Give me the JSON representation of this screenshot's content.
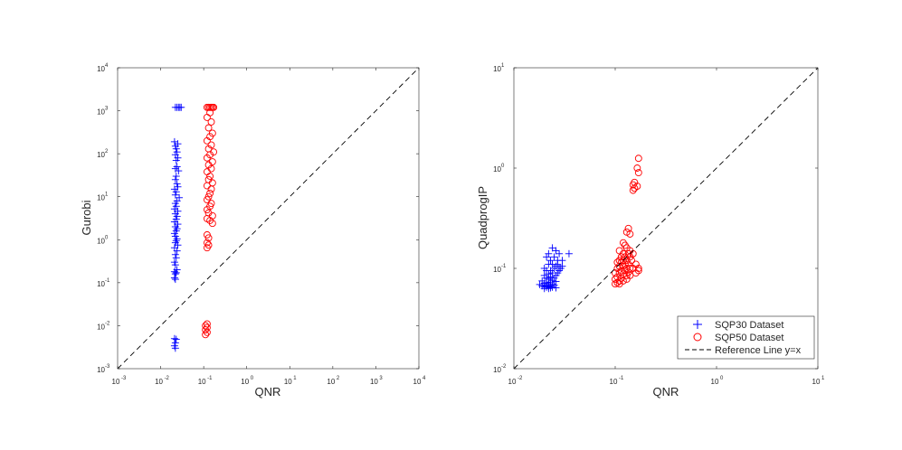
{
  "colors": {
    "sqp30": "#0000ff",
    "sqp50": "#ff0000",
    "reference": "#000000",
    "axis": "#262626"
  },
  "chart_data": [
    {
      "type": "scatter",
      "title": "",
      "xlabel": "QNR",
      "ylabel": "Gurobi",
      "xscale": "log",
      "yscale": "log",
      "xlim": [
        0.001,
        10000
      ],
      "ylim": [
        0.001,
        10000
      ],
      "x_tick_labels": [
        "10",
        "10",
        "10",
        "10",
        "10",
        "10",
        "10",
        "10"
      ],
      "x_tick_exponents": [
        "-3",
        "-2",
        "-1",
        "0",
        "1",
        "2",
        "3",
        "4"
      ],
      "y_tick_labels": [
        "10",
        "10",
        "10",
        "10",
        "10",
        "10",
        "10",
        "10"
      ],
      "y_tick_exponents": [
        "-3",
        "-2",
        "-1",
        "0",
        "1",
        "2",
        "3",
        "4"
      ],
      "grid": false,
      "legend": false,
      "series": [
        {
          "marker": "plus",
          "color": "#0000ff",
          "points": [
            [
              0.022,
              1200
            ],
            [
              0.024,
              1200
            ],
            [
              0.026,
              1200
            ],
            [
              0.028,
              1200
            ],
            [
              0.03,
              1200
            ],
            [
              0.021,
              190
            ],
            [
              0.025,
              170
            ],
            [
              0.022,
              150
            ],
            [
              0.023,
              130
            ],
            [
              0.024,
              110
            ],
            [
              0.022,
              95
            ],
            [
              0.025,
              80
            ],
            [
              0.023,
              70
            ],
            [
              0.024,
              50
            ],
            [
              0.022,
              45
            ],
            [
              0.026,
              40
            ],
            [
              0.023,
              30
            ],
            [
              0.022,
              25
            ],
            [
              0.024,
              20
            ],
            [
              0.025,
              17
            ],
            [
              0.021,
              15
            ],
            [
              0.023,
              13
            ],
            [
              0.022,
              11
            ],
            [
              0.027,
              9.5
            ],
            [
              0.024,
              8
            ],
            [
              0.022,
              7
            ],
            [
              0.023,
              6
            ],
            [
              0.021,
              5.2
            ],
            [
              0.025,
              4.6
            ],
            [
              0.022,
              4
            ],
            [
              0.024,
              3.5
            ],
            [
              0.023,
              3
            ],
            [
              0.021,
              2.6
            ],
            [
              0.025,
              2.3
            ],
            [
              0.022,
              2
            ],
            [
              0.024,
              1.8
            ],
            [
              0.023,
              1.6
            ],
            [
              0.021,
              1.4
            ],
            [
              0.022,
              1.2
            ],
            [
              0.024,
              1.05
            ],
            [
              0.023,
              0.95
            ],
            [
              0.022,
              0.85
            ],
            [
              0.025,
              0.75
            ],
            [
              0.021,
              0.65
            ],
            [
              0.024,
              0.55
            ],
            [
              0.022,
              0.45
            ],
            [
              0.023,
              0.38
            ],
            [
              0.021,
              0.3
            ],
            [
              0.022,
              0.26
            ],
            [
              0.024,
              0.2
            ],
            [
              0.021,
              0.18
            ],
            [
              0.023,
              0.17
            ],
            [
              0.022,
              0.16
            ],
            [
              0.021,
              0.13
            ],
            [
              0.022,
              0.12
            ],
            [
              0.021,
              0.005
            ],
            [
              0.023,
              0.0048
            ],
            [
              0.022,
              0.004
            ],
            [
              0.021,
              0.0034
            ],
            [
              0.022,
              0.003
            ]
          ]
        },
        {
          "marker": "circle",
          "color": "#ff0000",
          "points": [
            [
              0.12,
              1200
            ],
            [
              0.13,
              1200
            ],
            [
              0.14,
              1200
            ],
            [
              0.15,
              1200
            ],
            [
              0.16,
              1200
            ],
            [
              0.17,
              1200
            ],
            [
              0.14,
              900
            ],
            [
              0.12,
              700
            ],
            [
              0.15,
              550
            ],
            [
              0.13,
              400
            ],
            [
              0.16,
              300
            ],
            [
              0.14,
              250
            ],
            [
              0.12,
              200
            ],
            [
              0.15,
              160
            ],
            [
              0.13,
              130
            ],
            [
              0.17,
              110
            ],
            [
              0.14,
              95
            ],
            [
              0.12,
              80
            ],
            [
              0.16,
              65
            ],
            [
              0.13,
              55
            ],
            [
              0.15,
              45
            ],
            [
              0.12,
              38
            ],
            [
              0.14,
              30
            ],
            [
              0.13,
              25
            ],
            [
              0.16,
              21
            ],
            [
              0.12,
              18
            ],
            [
              0.15,
              15
            ],
            [
              0.14,
              12
            ],
            [
              0.13,
              10
            ],
            [
              0.12,
              8.5
            ],
            [
              0.15,
              7
            ],
            [
              0.14,
              6
            ],
            [
              0.12,
              5
            ],
            [
              0.13,
              4.2
            ],
            [
              0.16,
              3.6
            ],
            [
              0.12,
              3.1
            ],
            [
              0.14,
              2.8
            ],
            [
              0.16,
              2.4
            ],
            [
              0.12,
              1.3
            ],
            [
              0.13,
              1.1
            ],
            [
              0.12,
              0.85
            ],
            [
              0.13,
              0.75
            ],
            [
              0.12,
              0.65
            ],
            [
              0.12,
              0.011
            ],
            [
              0.11,
              0.01
            ],
            [
              0.12,
              0.009
            ],
            [
              0.11,
              0.008
            ],
            [
              0.12,
              0.007
            ],
            [
              0.11,
              0.0062
            ]
          ]
        },
        {
          "style": "dashed",
          "color": "#000000",
          "points": [
            [
              0.001,
              0.001
            ],
            [
              10000,
              10000
            ]
          ]
        }
      ]
    },
    {
      "type": "scatter",
      "title": "",
      "xlabel": "QNR",
      "ylabel": "QuadprogIP",
      "xscale": "log",
      "yscale": "log",
      "xlim": [
        0.01,
        10
      ],
      "ylim": [
        0.01,
        10
      ],
      "x_tick_labels": [
        "10",
        "10",
        "10",
        "10"
      ],
      "x_tick_exponents": [
        "-2",
        "-1",
        "0",
        "1"
      ],
      "y_tick_labels": [
        "10",
        "10",
        "10",
        "10"
      ],
      "y_tick_exponents": [
        "-2",
        "-1",
        "0",
        "1"
      ],
      "grid": false,
      "legend": {
        "position": "bottom-right",
        "entries": [
          "SQP30 Dataset",
          "SQP50 Dataset",
          "Reference Line y=x"
        ]
      },
      "series": [
        {
          "name": "SQP30 Dataset",
          "marker": "plus",
          "color": "#0000ff",
          "points": [
            [
              0.024,
              0.16
            ],
            [
              0.026,
              0.15
            ],
            [
              0.022,
              0.14
            ],
            [
              0.028,
              0.14
            ],
            [
              0.035,
              0.14
            ],
            [
              0.025,
              0.13
            ],
            [
              0.021,
              0.13
            ],
            [
              0.027,
              0.12
            ],
            [
              0.023,
              0.12
            ],
            [
              0.03,
              0.12
            ],
            [
              0.024,
              0.11
            ],
            [
              0.022,
              0.11
            ],
            [
              0.026,
              0.105
            ],
            [
              0.028,
              0.1
            ],
            [
              0.02,
              0.1
            ],
            [
              0.025,
              0.1
            ],
            [
              0.023,
              0.095
            ],
            [
              0.021,
              0.095
            ],
            [
              0.027,
              0.09
            ],
            [
              0.024,
              0.09
            ],
            [
              0.022,
              0.088
            ],
            [
              0.026,
              0.085
            ],
            [
              0.02,
              0.085
            ],
            [
              0.023,
              0.082
            ],
            [
              0.025,
              0.08
            ],
            [
              0.021,
              0.08
            ],
            [
              0.022,
              0.078
            ],
            [
              0.024,
              0.076
            ],
            [
              0.019,
              0.075
            ],
            [
              0.026,
              0.074
            ],
            [
              0.023,
              0.073
            ],
            [
              0.021,
              0.072
            ],
            [
              0.02,
              0.071
            ],
            [
              0.022,
              0.07
            ],
            [
              0.024,
              0.07
            ],
            [
              0.018,
              0.069
            ],
            [
              0.025,
              0.068
            ],
            [
              0.021,
              0.068
            ],
            [
              0.023,
              0.067
            ],
            [
              0.019,
              0.067
            ],
            [
              0.022,
              0.066
            ],
            [
              0.02,
              0.066
            ],
            [
              0.024,
              0.065
            ],
            [
              0.021,
              0.065
            ],
            [
              0.026,
              0.064
            ],
            [
              0.023,
              0.064
            ],
            [
              0.022,
              0.063
            ],
            [
              0.02,
              0.063
            ],
            [
              0.029,
              0.1
            ],
            [
              0.027,
              0.11
            ],
            [
              0.028,
              0.095
            ],
            [
              0.03,
              0.105
            ]
          ]
        },
        {
          "name": "SQP50 Dataset",
          "marker": "circle",
          "color": "#ff0000",
          "points": [
            [
              0.17,
              1.25
            ],
            [
              0.165,
              1.0
            ],
            [
              0.17,
              0.9
            ],
            [
              0.155,
              0.72
            ],
            [
              0.15,
              0.68
            ],
            [
              0.165,
              0.66
            ],
            [
              0.155,
              0.63
            ],
            [
              0.15,
              0.6
            ],
            [
              0.135,
              0.25
            ],
            [
              0.13,
              0.23
            ],
            [
              0.14,
              0.22
            ],
            [
              0.12,
              0.18
            ],
            [
              0.125,
              0.17
            ],
            [
              0.13,
              0.16
            ],
            [
              0.14,
              0.15
            ],
            [
              0.11,
              0.15
            ],
            [
              0.12,
              0.14
            ],
            [
              0.135,
              0.14
            ],
            [
              0.15,
              0.14
            ],
            [
              0.115,
              0.13
            ],
            [
              0.125,
              0.13
            ],
            [
              0.14,
              0.13
            ],
            [
              0.11,
              0.12
            ],
            [
              0.12,
              0.12
            ],
            [
              0.13,
              0.12
            ],
            [
              0.145,
              0.12
            ],
            [
              0.105,
              0.115
            ],
            [
              0.115,
              0.115
            ],
            [
              0.125,
              0.11
            ],
            [
              0.135,
              0.11
            ],
            [
              0.16,
              0.11
            ],
            [
              0.11,
              0.105
            ],
            [
              0.12,
              0.105
            ],
            [
              0.13,
              0.1
            ],
            [
              0.14,
              0.1
            ],
            [
              0.15,
              0.1
            ],
            [
              0.17,
              0.1
            ],
            [
              0.105,
              0.1
            ],
            [
              0.115,
              0.095
            ],
            [
              0.125,
              0.095
            ],
            [
              0.135,
              0.092
            ],
            [
              0.1,
              0.09
            ],
            [
              0.11,
              0.09
            ],
            [
              0.12,
              0.088
            ],
            [
              0.13,
              0.085
            ],
            [
              0.14,
              0.085
            ],
            [
              0.105,
              0.082
            ],
            [
              0.115,
              0.08
            ],
            [
              0.1,
              0.078
            ],
            [
              0.11,
              0.075
            ],
            [
              0.12,
              0.075
            ],
            [
              0.105,
              0.072
            ],
            [
              0.1,
              0.07
            ],
            [
              0.11,
              0.07
            ],
            [
              0.13,
              0.078
            ],
            [
              0.16,
              0.09
            ],
            [
              0.17,
              0.095
            ]
          ]
        },
        {
          "name": "Reference Line y=x",
          "style": "dashed",
          "color": "#000000",
          "points": [
            [
              0.01,
              0.01
            ],
            [
              10,
              10
            ]
          ]
        }
      ]
    }
  ]
}
